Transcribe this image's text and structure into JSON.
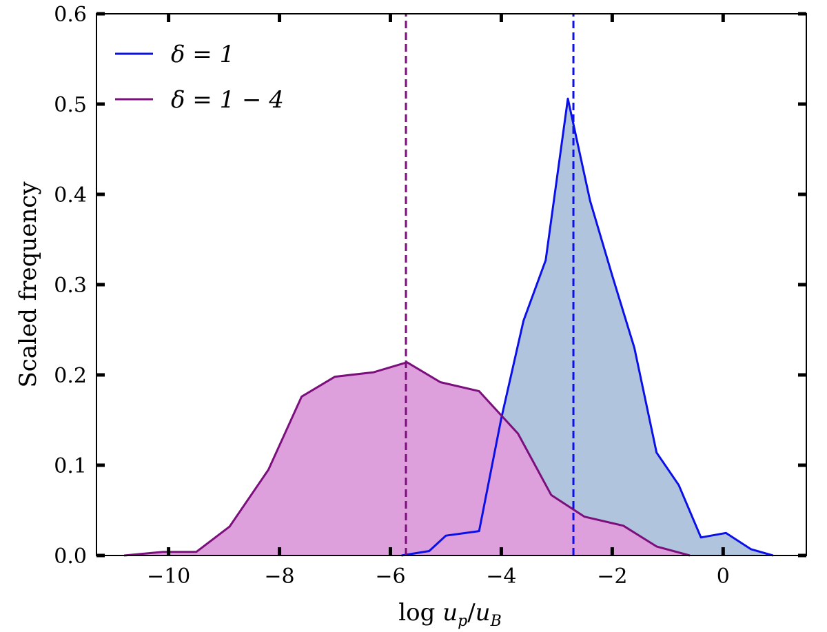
{
  "chart_data": {
    "type": "area",
    "xlabel": "log u_p/u_B",
    "ylabel": "Scaled frequency",
    "xlim": [
      -11.3,
      1.5
    ],
    "ylim": [
      0,
      0.6
    ],
    "xticks": [
      -10,
      -8,
      -6,
      -4,
      -2,
      0
    ],
    "yticks": [
      0.0,
      0.1,
      0.2,
      0.3,
      0.4,
      0.5,
      0.6
    ],
    "xtick_labels": [
      "−10",
      "−8",
      "−6",
      "−4",
      "−2",
      "0"
    ],
    "ytick_labels": [
      "0.0",
      "0.1",
      "0.2",
      "0.3",
      "0.4",
      "0.5",
      "0.6"
    ],
    "grid": false,
    "legend_position": "top-left",
    "series": [
      {
        "name": "δ = 1",
        "line_color": "#0a10e6",
        "fill_color": "#b0c4de",
        "x": [
          -5.8,
          -5.3,
          -5.0,
          -4.4,
          -4.0,
          -3.6,
          -3.2,
          -2.8,
          -2.4,
          -2.0,
          -1.6,
          -1.2,
          -0.8,
          -0.4,
          0.05,
          0.5,
          0.9
        ],
        "y": [
          0.0,
          0.005,
          0.022,
          0.027,
          0.152,
          0.26,
          0.327,
          0.506,
          0.393,
          0.31,
          0.23,
          0.114,
          0.078,
          0.02,
          0.025,
          0.007,
          0.0
        ],
        "marker_line_x": -2.7
      },
      {
        "name": "δ = 1 − 4",
        "line_color": "#7b0f7b",
        "fill_color": "#dda0dd",
        "x": [
          -10.8,
          -10.1,
          -9.5,
          -8.9,
          -8.2,
          -7.6,
          -7.0,
          -6.3,
          -5.7,
          -5.1,
          -4.4,
          -3.7,
          -3.1,
          -2.5,
          -1.8,
          -1.2,
          -0.6
        ],
        "y": [
          0.0,
          0.004,
          0.004,
          0.032,
          0.095,
          0.176,
          0.198,
          0.203,
          0.214,
          0.192,
          0.182,
          0.135,
          0.067,
          0.043,
          0.033,
          0.01,
          0.0
        ],
        "marker_line_x": -5.72
      }
    ]
  }
}
